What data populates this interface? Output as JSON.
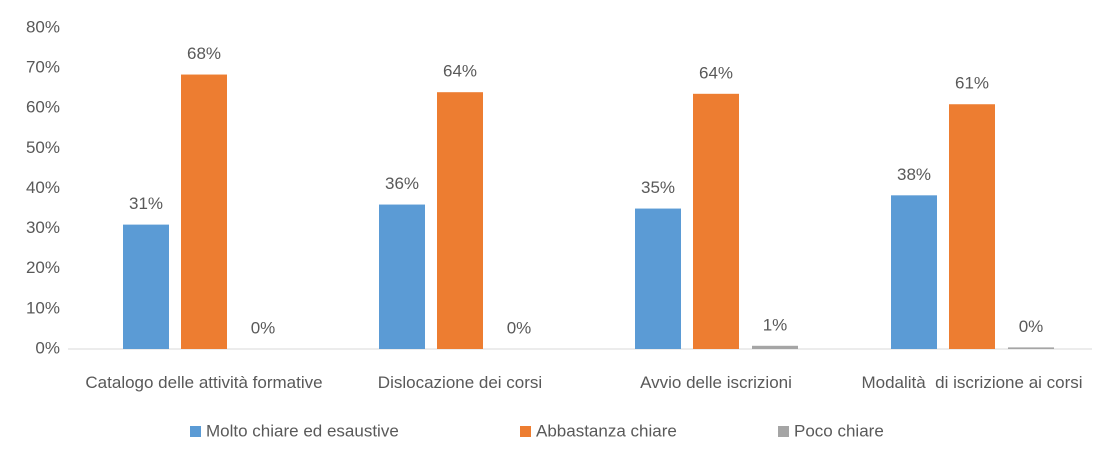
{
  "chart_data": {
    "type": "bar",
    "categories": [
      "Catalogo delle attività formative",
      "Dislocazione dei corsi",
      "Avvio delle iscrizioni",
      "Modalità  di iscrizione ai corsi"
    ],
    "series": [
      {
        "name": "Molto chiare ed esaustive",
        "color": "#5b9bd5",
        "values": [
          31,
          36,
          35,
          38.3
        ],
        "value_labels": [
          "31%",
          "36%",
          "35%",
          "38%"
        ]
      },
      {
        "name": "Abbastanza chiare",
        "color": "#ed7d31",
        "values": [
          68.4,
          64,
          63.6,
          61
        ],
        "value_labels": [
          "68%",
          "64%",
          "64%",
          "61%"
        ]
      },
      {
        "name": "Poco chiare",
        "color": "#a5a5a5",
        "values": [
          0,
          0,
          0.8,
          0.4
        ],
        "value_labels": [
          "0%",
          "0%",
          "1%",
          "0%"
        ]
      }
    ],
    "ylim": [
      0,
      80
    ],
    "yticks": [
      {
        "value": 0,
        "label": "0%"
      },
      {
        "value": 10,
        "label": "10%"
      },
      {
        "value": 20,
        "label": "20%"
      },
      {
        "value": 30,
        "label": "30%"
      },
      {
        "value": 40,
        "label": "40%"
      },
      {
        "value": 50,
        "label": "50%"
      },
      {
        "value": 60,
        "label": "60%"
      },
      {
        "value": 70,
        "label": "70%"
      },
      {
        "value": 80,
        "label": "80%"
      }
    ],
    "grid": false,
    "legend": "bottom"
  }
}
